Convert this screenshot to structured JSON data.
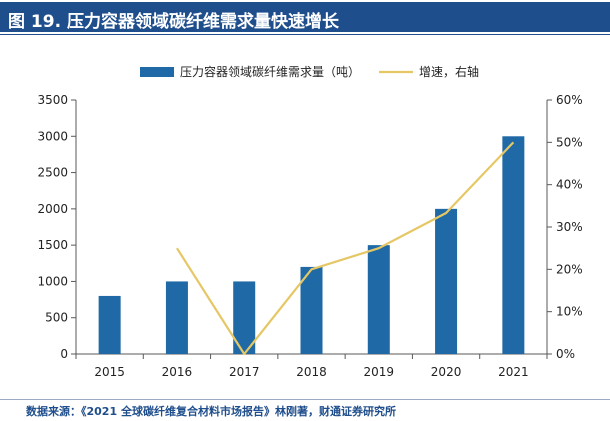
{
  "figure": {
    "title": "图 19. 压力容器领域碳纤维需求量快速增长",
    "source": "数据来源：《2021 全球碳纤维复合材料市场报告》林刚著，财通证券研究所"
  },
  "colors": {
    "title_bar": "#1f4e8c",
    "bar": "#1f6aa6",
    "line": "#e5c766",
    "axis": "#595959",
    "text": "#222222"
  },
  "chart_data": {
    "type": "bar",
    "categories": [
      "2015",
      "2016",
      "2017",
      "2018",
      "2019",
      "2020",
      "2021"
    ],
    "series": [
      {
        "name": "压力容器领域碳纤维需求量（吨）",
        "type": "bar",
        "axis": "left",
        "values": [
          800,
          1000,
          1000,
          1200,
          1500,
          2000,
          3000
        ]
      },
      {
        "name": "增速，右轴",
        "type": "line",
        "axis": "right",
        "values": [
          null,
          0.25,
          0.0,
          0.2,
          0.25,
          0.333,
          0.5
        ]
      }
    ],
    "y_left": {
      "range": [
        0,
        3500
      ],
      "ticks": [
        0,
        500,
        1000,
        1500,
        2000,
        2500,
        3000,
        3500
      ],
      "tick_labels": [
        "0",
        "500",
        "1000",
        "1500",
        "2000",
        "2500",
        "3000",
        "3500"
      ]
    },
    "y_right": {
      "range": [
        0,
        0.6
      ],
      "ticks": [
        0,
        0.1,
        0.2,
        0.3,
        0.4,
        0.5,
        0.6
      ],
      "tick_labels": [
        "0%",
        "10%",
        "20%",
        "30%",
        "40%",
        "50%",
        "60%"
      ]
    },
    "grid": false,
    "legend_position": "top-center"
  }
}
